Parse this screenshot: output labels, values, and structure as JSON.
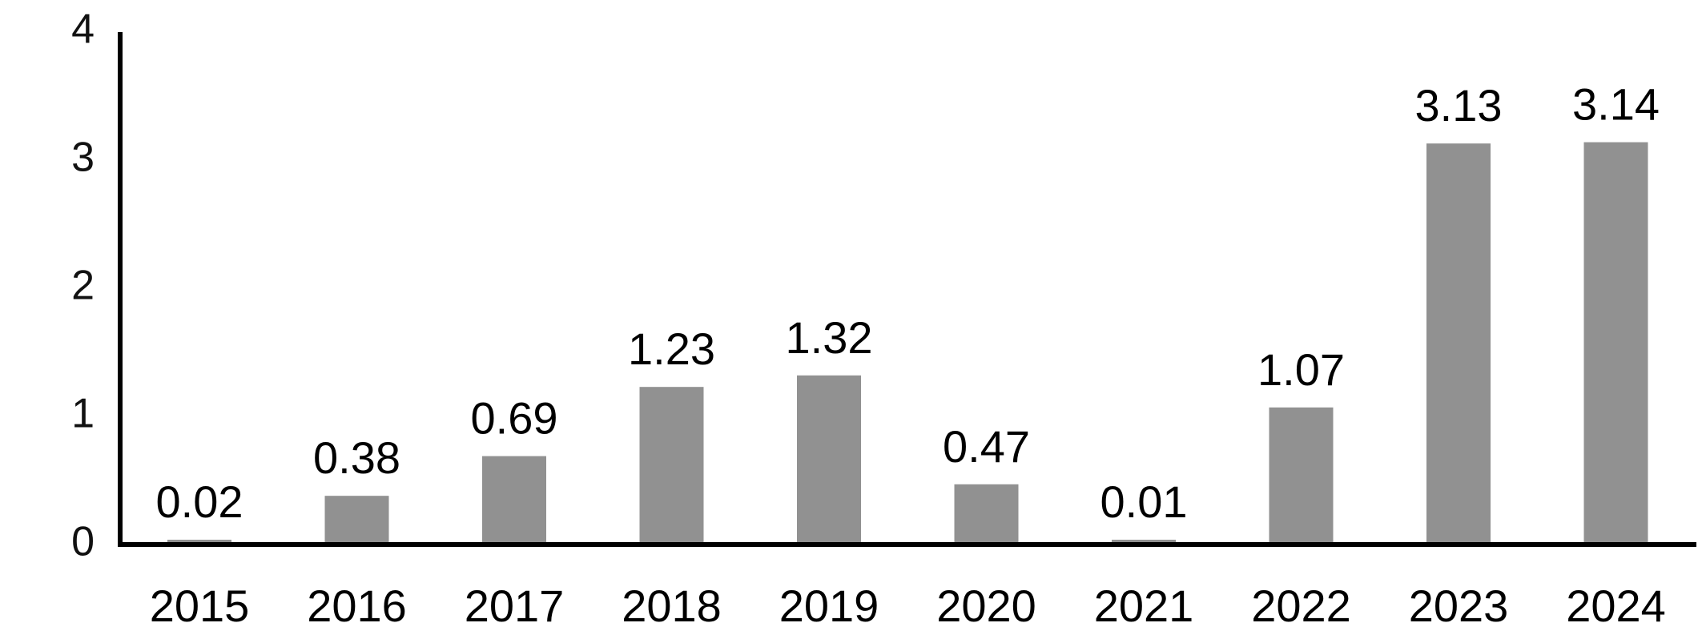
{
  "chart_data": {
    "type": "bar",
    "categories": [
      "2015",
      "2016",
      "2017",
      "2018",
      "2019",
      "2020",
      "2021",
      "2022",
      "2023",
      "2024"
    ],
    "values": [
      0.02,
      0.38,
      0.69,
      1.23,
      1.32,
      0.47,
      0.01,
      1.07,
      3.13,
      3.14
    ],
    "data_labels": [
      "0.02",
      "0.38",
      "0.69",
      "1.23",
      "1.32",
      "0.47",
      "0.01",
      "1.07",
      "3.13",
      "3.14"
    ],
    "yticks": [
      "0",
      "1",
      "2",
      "3",
      "4"
    ],
    "ylim": [
      0,
      4
    ],
    "grid": false,
    "legend": "none",
    "colors": {
      "bar": "#919191",
      "axis": "#000000"
    }
  }
}
